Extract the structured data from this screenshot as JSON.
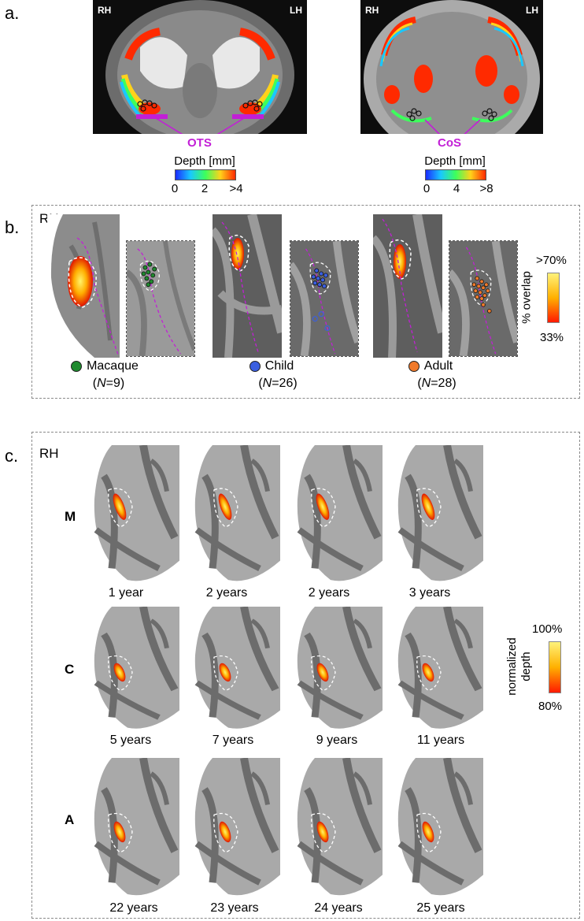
{
  "panel_a": {
    "letter": "a.",
    "left_image": {
      "rh": "RH",
      "lh": "LH",
      "sulcus": "OTS"
    },
    "right_image": {
      "rh": "RH",
      "lh": "LH",
      "sulcus": "CoS"
    },
    "left_colorbar": {
      "title": "Depth [mm]",
      "ticks": [
        "0",
        "2",
        ">4"
      ]
    },
    "right_colorbar": {
      "title": "Depth [mm]",
      "ticks": [
        "0",
        "4",
        ">8"
      ]
    }
  },
  "panel_b": {
    "letter": "b.",
    "hemisphere": "RH",
    "groups": [
      {
        "name": "Macaque",
        "n_prefix": "(",
        "n_italic": "N",
        "n_suffix": "=9)",
        "color": "#1f8a2e"
      },
      {
        "name": "Child",
        "n_prefix": "(",
        "n_italic": "N",
        "n_suffix": "=26)",
        "color": "#3a5fe0"
      },
      {
        "name": "Adult",
        "n_prefix": "(",
        "n_italic": "N",
        "n_suffix": "=28)",
        "color": "#f07a2a"
      }
    ],
    "colorbar": {
      "title": "% overlap",
      "max": ">70%",
      "min": "33%"
    }
  },
  "panel_c": {
    "letter": "c.",
    "hemisphere": "RH",
    "rows": [
      {
        "letter": "M",
        "color": "#1e7a1e",
        "ages": [
          "1 year",
          "2 years",
          "2 years",
          "3 years"
        ]
      },
      {
        "letter": "C",
        "color": "#2a5fe0",
        "ages": [
          "5 years",
          "7 years",
          "9 years",
          "11 years"
        ]
      },
      {
        "letter": "A",
        "color": "#f07a2a",
        "ages": [
          "22 years",
          "23 years",
          "24 years",
          "25 years"
        ]
      }
    ],
    "colorbar": {
      "title_line1": "normalized",
      "title_line2": "depth",
      "max": "100%",
      "min": "80%"
    }
  }
}
